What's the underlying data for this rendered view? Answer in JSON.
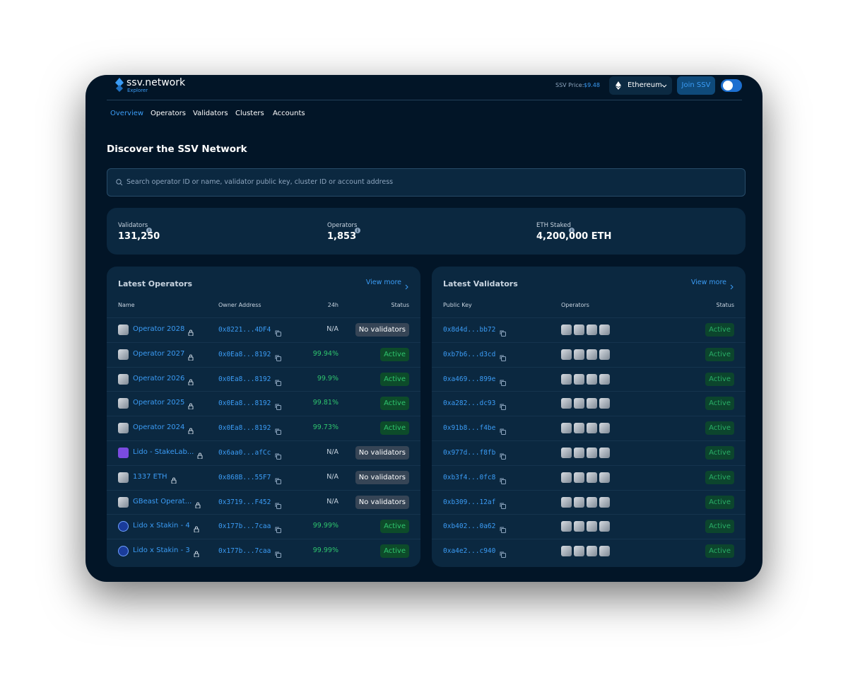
{
  "header": {
    "logo": "ssv.network",
    "logo_sub": "Explorer",
    "price_label": "SSV Price:",
    "price": "$9.48",
    "network": "Ethereum",
    "join": "Join SSV"
  },
  "nav": [
    "Overview",
    "Operators",
    "Validators",
    "Clusters",
    "Accounts"
  ],
  "title": "Discover the SSV Network",
  "search_placeholder": "Search operator ID or name, validator public key, cluster ID or account address",
  "stats": [
    {
      "label": "Validators",
      "value": "131,250"
    },
    {
      "label": "Operators",
      "value": "1,853"
    },
    {
      "label": "ETH Staked",
      "value": "4,200,000 ETH"
    }
  ],
  "operators": {
    "title": "Latest Operators",
    "view_more": "View more",
    "columns": [
      "Name",
      "Owner Address",
      "24h",
      "Status"
    ],
    "rows": [
      [
        "Operator 2028",
        "0x8221...4DF4",
        "N/A",
        "No validators"
      ],
      [
        "Operator 2027",
        "0x0Ea8...8192",
        "99.94%",
        "Active"
      ],
      [
        "Operator 2026",
        "0x0Ea8...8192",
        "99.9%",
        "Active"
      ],
      [
        "Operator 2025",
        "0x0Ea8...8192",
        "99.81%",
        "Active"
      ],
      [
        "Operator 2024",
        "0x0Ea8...8192",
        "99.73%",
        "Active"
      ],
      [
        "Lido - StakeLab...",
        "0x6aa0...afCc",
        "N/A",
        "No validators"
      ],
      [
        "1337 ETH",
        "0x868B...55F7",
        "N/A",
        "No validators"
      ],
      [
        "GBeast Operat...",
        "0x3719...F452",
        "N/A",
        "No validators"
      ],
      [
        "Lido x Stakin - 4",
        "0x177b...7caa",
        "99.99%",
        "Active"
      ],
      [
        "Lido x Stakin - 3",
        "0x177b...7caa",
        "99.99%",
        "Active"
      ]
    ]
  },
  "validators": {
    "title": "Latest Validators",
    "view_more": "View more",
    "columns": [
      "Public Key",
      "Operators",
      "Status"
    ],
    "rows": [
      [
        "0x8d4d...bb72",
        "Active"
      ],
      [
        "0xb7b6...d3cd",
        "Active"
      ],
      [
        "0xa469...899e",
        "Active"
      ],
      [
        "0xa282...dc93",
        "Active"
      ],
      [
        "0x91b8...f4be",
        "Active"
      ],
      [
        "0x977d...f8fb",
        "Active"
      ],
      [
        "0xb3f4...0fc8",
        "Active"
      ],
      [
        "0xb309...12af",
        "Active"
      ],
      [
        "0xb402...0a62",
        "Active"
      ],
      [
        "0xa4e2...c940",
        "Active"
      ]
    ]
  }
}
